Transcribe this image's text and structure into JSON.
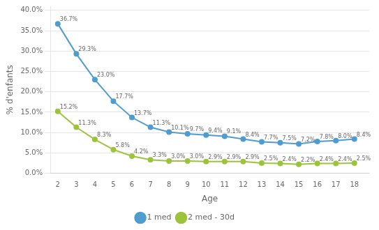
{
  "chart_data": {
    "type": "line",
    "xlabel": "Age",
    "ylabel": "% d'enfants",
    "x": [
      2,
      3,
      4,
      5,
      6,
      7,
      8,
      9,
      10,
      11,
      12,
      13,
      14,
      15,
      16,
      17,
      18
    ],
    "xlim": [
      1.6,
      18.8
    ],
    "xticks": [
      2,
      3,
      4,
      5,
      6,
      7,
      8,
      9,
      10,
      11,
      12,
      13,
      14,
      15,
      16,
      17,
      18
    ],
    "ylim": [
      0.0,
      41.0
    ],
    "yticks": [
      {
        "value": 0,
        "label": "0.0%"
      },
      {
        "value": 5,
        "label": "5.0%"
      },
      {
        "value": 10,
        "label": "10.0%"
      },
      {
        "value": 15,
        "label": "15.0%"
      },
      {
        "value": 20,
        "label": "20.0%"
      },
      {
        "value": 25,
        "label": "25.0%"
      },
      {
        "value": 30,
        "label": "30.0%"
      },
      {
        "value": 35,
        "label": "35.0%"
      },
      {
        "value": 40,
        "label": "40.0%"
      }
    ],
    "grid": "y",
    "legend": "bottom",
    "data_labels": true,
    "series": [
      {
        "name": "1 med",
        "color": "#4E9CD0",
        "marker": "circle",
        "values": [
          36.7,
          29.3,
          23.0,
          17.7,
          13.7,
          11.3,
          10.1,
          9.7,
          9.4,
          9.1,
          8.4,
          7.7,
          7.5,
          7.2,
          7.8,
          8.0,
          8.4
        ],
        "value_labels": [
          "36.7%",
          "29.3%",
          "23.0%",
          "17.7%",
          "13.7%",
          "11.3%",
          "10.1%",
          "9.7%",
          "9.4%",
          "9.1%",
          "8.4%",
          "7.7%",
          "7.5%",
          "7.2%",
          "7.8%",
          "8.0%",
          "8.4%"
        ]
      },
      {
        "name": "2 med - 30d",
        "color": "#9DC33B",
        "marker": "circle",
        "values": [
          15.2,
          11.3,
          8.3,
          5.8,
          4.2,
          3.3,
          3.0,
          3.0,
          2.9,
          2.9,
          2.9,
          2.5,
          2.4,
          2.2,
          2.4,
          2.4,
          2.5
        ],
        "value_labels": [
          "15.2%",
          "11.3%",
          "8.3%",
          "5.8%",
          "4.2%",
          "3.3%",
          "3.0%",
          "3.0%",
          "2.9%",
          "2.9%",
          "2.9%",
          "2.5%",
          "2.4%",
          "2.2%",
          "2.4%",
          "2.4%",
          "2.5%"
        ]
      }
    ]
  }
}
